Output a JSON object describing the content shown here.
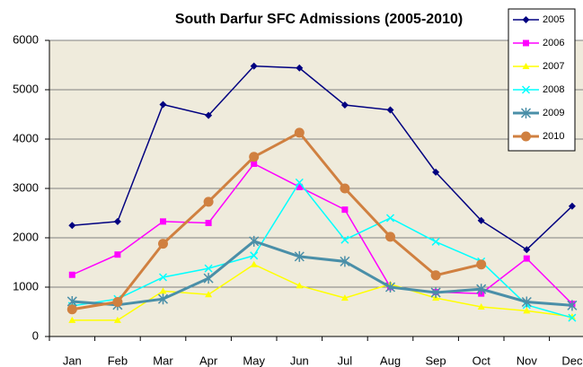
{
  "chart_data": {
    "type": "line",
    "title": "South Darfur SFC Admissions (2005-2010)",
    "categories": [
      "Jan",
      "Feb",
      "Mar",
      "Apr",
      "May",
      "Jun",
      "Jul",
      "Aug",
      "Sep",
      "Oct",
      "Nov",
      "Dec"
    ],
    "series": [
      {
        "name": "2005",
        "color": "#000080",
        "marker": "diamond",
        "values": [
          2250,
          2330,
          4700,
          4480,
          5480,
          5440,
          4690,
          4590,
          3330,
          2350,
          1760,
          2640
        ]
      },
      {
        "name": "2006",
        "color": "#ff00ff",
        "marker": "square",
        "values": [
          1250,
          1660,
          2330,
          2300,
          3500,
          3030,
          2570,
          1000,
          900,
          870,
          1580,
          660
        ]
      },
      {
        "name": "2007",
        "color": "#ffff00",
        "marker": "triangle",
        "values": [
          330,
          330,
          920,
          850,
          1460,
          1030,
          780,
          1060,
          780,
          600,
          520,
          400
        ]
      },
      {
        "name": "2008",
        "color": "#00ffff",
        "marker": "x",
        "values": [
          620,
          760,
          1200,
          1380,
          1640,
          3120,
          1960,
          2400,
          1920,
          1520,
          640,
          380
        ]
      },
      {
        "name": "2009",
        "color": "#4a8fa8",
        "marker": "star",
        "values": [
          710,
          640,
          760,
          1180,
          1930,
          1620,
          1520,
          1000,
          890,
          960,
          700,
          630
        ]
      },
      {
        "name": "2010",
        "color": "#d08040",
        "marker": "circle",
        "values": [
          550,
          700,
          1880,
          2730,
          3640,
          4130,
          3000,
          2020,
          1240,
          1460,
          null,
          null
        ]
      }
    ],
    "ylim": [
      0,
      6000
    ],
    "yticks": [
      0,
      1000,
      2000,
      3000,
      4000,
      5000,
      6000
    ],
    "grid": true,
    "legend": "top-right"
  }
}
